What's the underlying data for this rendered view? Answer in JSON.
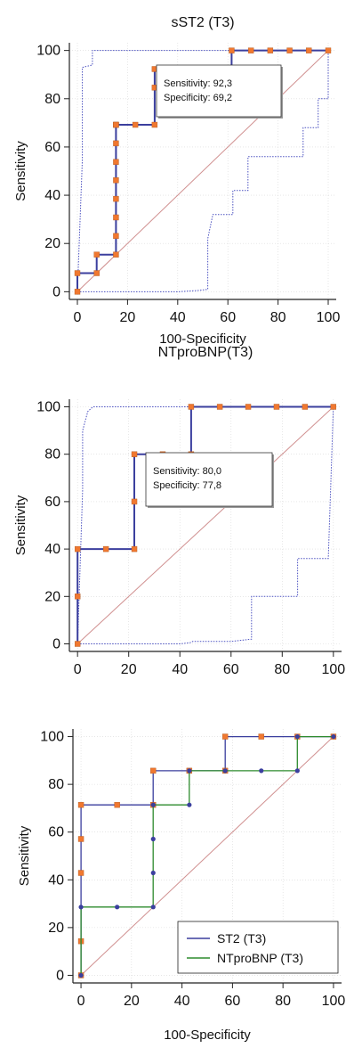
{
  "colors": {
    "roc": "#3b3f9e",
    "ci": "#4a50c0",
    "diagonal": "#d09090",
    "marker": "#f07830",
    "series2": "#2e8b2e",
    "grid": "#d8d8d8"
  },
  "chart_data": [
    {
      "type": "line",
      "title": "sST2 (T3)",
      "xlabel": "100-Specificity",
      "ylabel": "Sensitivity",
      "xlim": [
        0,
        100
      ],
      "ylim": [
        0,
        100
      ],
      "xticks": [
        "0",
        "20",
        "40",
        "60",
        "80",
        "100"
      ],
      "yticks": [
        "0",
        "20",
        "40",
        "60",
        "80",
        "100"
      ],
      "grid": true,
      "series": [
        {
          "x": [
            0,
            0,
            7.7,
            7.7,
            15.4,
            15.4,
            15.4,
            15.4,
            15.4,
            15.4,
            15.4,
            15.4,
            15.4,
            15.4,
            23.1,
            30.8,
            30.8,
            30.8,
            38.5,
            46.2,
            53.8,
            61.5,
            61.5,
            69.2,
            76.9,
            84.6,
            92.3,
            100
          ],
          "y": [
            0,
            7.7,
            7.7,
            15.4,
            15.4,
            23.1,
            30.8,
            38.5,
            46.2,
            53.8,
            61.5,
            69.2,
            69.2,
            69.2,
            69.2,
            69.2,
            84.6,
            92.3,
            92.3,
            92.3,
            92.3,
            92.3,
            100,
            100,
            100,
            100,
            100,
            100
          ]
        }
      ],
      "ci_upper": {
        "x": [
          0,
          2,
          2,
          6,
          6,
          14,
          20,
          30,
          40,
          50,
          60,
          70,
          80,
          90,
          100
        ],
        "y": [
          0,
          55,
          93,
          94,
          100,
          100,
          100,
          100,
          100,
          100,
          100,
          100,
          100,
          100,
          100
        ]
      },
      "ci_lower": {
        "x": [
          0,
          10,
          20,
          30,
          40,
          48,
          52,
          52,
          54,
          62,
          62,
          68,
          68,
          90,
          90,
          96,
          96,
          100,
          100
        ],
        "y": [
          0,
          0,
          0,
          0,
          0,
          0.5,
          1,
          22,
          32,
          32,
          42,
          42,
          56,
          56,
          68,
          68,
          80,
          80,
          100
        ]
      },
      "annotation": {
        "sensitivity": "Sensitivity: 92,3",
        "specificity": "Specificity: 69,2"
      }
    },
    {
      "type": "line",
      "title": "NTproBNP(T3)",
      "xlabel": "",
      "ylabel": "Sensitivity",
      "xlim": [
        0,
        100
      ],
      "ylim": [
        0,
        100
      ],
      "xticks": [
        "0",
        "20",
        "40",
        "60",
        "80",
        "100"
      ],
      "yticks": [
        "0",
        "20",
        "40",
        "60",
        "80",
        "100"
      ],
      "grid": true,
      "series": [
        {
          "x": [
            0,
            0,
            0,
            11.1,
            22.2,
            22.2,
            22.2,
            33.3,
            44.4,
            44.4,
            55.6,
            66.7,
            77.8,
            88.9,
            100
          ],
          "y": [
            0,
            20,
            40,
            40,
            40,
            60,
            80,
            80,
            80,
            100,
            100,
            100,
            100,
            100,
            100
          ]
        }
      ],
      "ci_upper": {
        "x": [
          0,
          2,
          2,
          4,
          6,
          12,
          20,
          30,
          40,
          50,
          60,
          70,
          80,
          90,
          100
        ],
        "y": [
          0,
          65,
          90,
          98,
          100,
          100,
          100,
          100,
          100,
          100,
          100,
          100,
          100,
          100,
          100
        ]
      },
      "ci_lower": {
        "x": [
          0,
          10,
          20,
          30,
          40,
          44,
          45,
          60,
          68,
          68,
          86,
          86,
          98,
          98,
          100
        ],
        "y": [
          0,
          0,
          0,
          0,
          0,
          0.5,
          1,
          1,
          2,
          20,
          20,
          36,
          36,
          36,
          100
        ]
      },
      "annotation": {
        "sensitivity": "Sensitivity: 80,0",
        "specificity": "Specificity: 77,8"
      }
    },
    {
      "type": "line",
      "title": "",
      "xlabel": "100-Specificity",
      "ylabel": "Sensitivity",
      "xlim": [
        0,
        100
      ],
      "ylim": [
        0,
        100
      ],
      "xticks": [
        "0",
        "20",
        "40",
        "60",
        "80",
        "100"
      ],
      "yticks": [
        "0",
        "20",
        "40",
        "60",
        "80",
        "100"
      ],
      "grid": true,
      "legend": "bottom-right",
      "series": [
        {
          "name": "ST2 (T3)",
          "x": [
            0,
            0,
            0,
            0,
            0,
            14.3,
            28.6,
            28.6,
            42.9,
            57.1,
            57.1,
            71.4,
            85.7,
            100
          ],
          "y": [
            0,
            14.3,
            42.9,
            57.1,
            71.4,
            71.4,
            71.4,
            85.7,
            85.7,
            85.7,
            100,
            100,
            100,
            100
          ]
        },
        {
          "name": "NTproBNP (T3)",
          "x": [
            0,
            0,
            14.3,
            28.6,
            28.6,
            28.6,
            28.6,
            42.9,
            42.9,
            57.1,
            71.4,
            85.7,
            85.7,
            100
          ],
          "y": [
            0,
            28.6,
            28.6,
            28.6,
            42.9,
            57.1,
            71.4,
            71.4,
            85.7,
            85.7,
            85.7,
            85.7,
            100,
            100
          ]
        }
      ]
    }
  ]
}
